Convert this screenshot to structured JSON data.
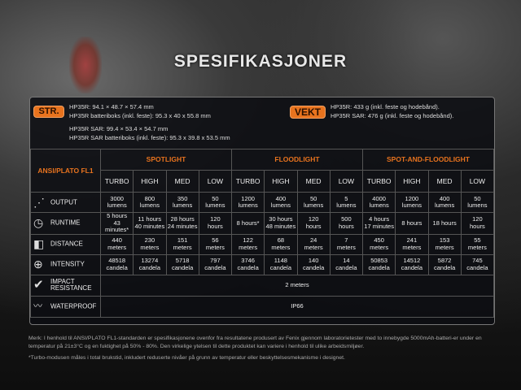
{
  "title": "SPESIFIKASJONER",
  "size": {
    "badge": "STR.",
    "lines": [
      "HP35R: 94.1 × 48.7 × 57.4 mm",
      "HP35R batteriboks (inkl. feste): 95.3 x 40 x 55.8 mm",
      "HP35R SAR: 99.4 × 53.4 × 54.7 mm",
      "HP35R SAR batteriboks (inkl. feste): 95.3 x 39.8 x 53.5 mm"
    ]
  },
  "weight": {
    "badge": "VEKT",
    "lines": [
      "HP35R: 433 g (inkl. feste og hodebånd).",
      "HP35R SAR: 476 g (inkl. feste og hodebånd)."
    ]
  },
  "table": {
    "standard": "ANSI/PLATO FL1",
    "groups": [
      "SPOTLIGHT",
      "FLOODLIGHT",
      "SPOT-AND-FLOODLIGHT"
    ],
    "modes": [
      "TURBO",
      "HIGH",
      "MED",
      "LOW",
      "TURBO",
      "HIGH",
      "MED",
      "LOW",
      "TURBO",
      "HIGH",
      "MED",
      "LOW"
    ],
    "rows": [
      {
        "label": "OUTPUT",
        "icon": "output-icon",
        "cells": [
          [
            "3000",
            "lumens"
          ],
          [
            "800",
            "lumens"
          ],
          [
            "350",
            "lumens"
          ],
          [
            "50",
            "lumens"
          ],
          [
            "1200",
            "lumens"
          ],
          [
            "400",
            "lumens"
          ],
          [
            "50",
            "lumens"
          ],
          [
            "5",
            "lumens"
          ],
          [
            "4000",
            "lumens"
          ],
          [
            "1200",
            "lumens"
          ],
          [
            "400",
            "lumens"
          ],
          [
            "50",
            "lumens"
          ]
        ]
      },
      {
        "label": "RUNTIME",
        "icon": "clock-icon",
        "cells": [
          [
            "5 hours",
            "43 minutes*"
          ],
          [
            "11 hours",
            "40 minutes"
          ],
          [
            "28 hours",
            "24 minutes"
          ],
          [
            "120",
            "hours"
          ],
          [
            "8 hours*",
            ""
          ],
          [
            "30 hours",
            "48 minutes"
          ],
          [
            "120",
            "hours"
          ],
          [
            "500",
            "hours"
          ],
          [
            "4 hours",
            "17 minutes"
          ],
          [
            "8 hours",
            ""
          ],
          [
            "18 hours",
            ""
          ],
          [
            "120",
            "hours"
          ]
        ]
      },
      {
        "label": "DISTANCE",
        "icon": "beam-distance-icon",
        "cells": [
          [
            "440",
            "meters"
          ],
          [
            "230",
            "meters"
          ],
          [
            "151",
            "meters"
          ],
          [
            "56",
            "meters"
          ],
          [
            "122",
            "meters"
          ],
          [
            "68",
            "meters"
          ],
          [
            "24",
            "meters"
          ],
          [
            "7",
            "meters"
          ],
          [
            "450",
            "meters"
          ],
          [
            "241",
            "meters"
          ],
          [
            "153",
            "meters"
          ],
          [
            "55",
            "meters"
          ]
        ]
      },
      {
        "label": "INTENSITY",
        "icon": "crosshair-icon",
        "cells": [
          [
            "48518",
            "candela"
          ],
          [
            "13274",
            "candela"
          ],
          [
            "5718",
            "candela"
          ],
          [
            "797",
            "candela"
          ],
          [
            "3746",
            "candela"
          ],
          [
            "1148",
            "candela"
          ],
          [
            "140",
            "candela"
          ],
          [
            "14",
            "candela"
          ],
          [
            "50853",
            "candela"
          ],
          [
            "14512",
            "candela"
          ],
          [
            "5872",
            "candela"
          ],
          [
            "745",
            "candela"
          ]
        ]
      }
    ],
    "impact": {
      "label1": "IMPACT",
      "label2": "RESISTANCE",
      "value": "2 meters"
    },
    "waterproof": {
      "label": "WATERPROOF",
      "value": "IP66"
    }
  },
  "notes": [
    "Merk: I henhold til ANSI/PLATO FL1-standarden er spesifikasjonene ovenfor fra resultatene produsert av Fenix gjennom laboratorietester med to innebygde 5000mAh-batteri-er under en temperatur på 21±3°C og en fuktighet på 50% - 80%. Den virkelige ytelsen til dette produktet kan variere i henhold til ulike arbeidsmiljøer.",
    "*Turbo-modusen måles i total brukstid, inkludert reduserte nivåer på grunn av temperatur eller beskyttelsesmekanisme i designet."
  ],
  "colors": {
    "accent": "#e8731e"
  }
}
